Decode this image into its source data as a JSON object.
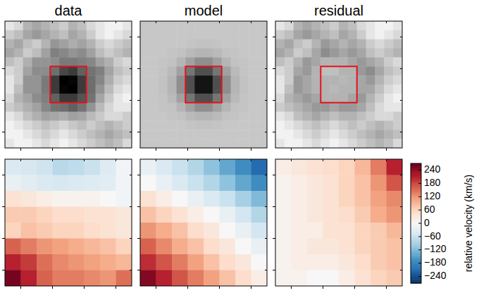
{
  "chart_data": [
    {
      "type": "heatmap",
      "title": "data",
      "color": "gray",
      "color_range": [
        0,
        1
      ],
      "xlim": [
        0,
        14
      ],
      "ylim": [
        0,
        14
      ],
      "xticks": [
        1.75,
        5.25,
        8.75,
        12.25
      ],
      "yticks": [
        1.75,
        5.25,
        8.75,
        12.25
      ],
      "tick_labels": false,
      "box": {
        "x": [
          5,
          9
        ],
        "y": [
          5,
          9
        ],
        "color": "#e8101a"
      },
      "cells": [
        [
          0.1,
          0.15,
          0.3,
          0.35,
          0.3,
          0.25,
          0.2,
          0.3,
          0.25,
          0.15,
          0.1,
          0.05,
          0.05,
          0.1
        ],
        [
          0.2,
          0.25,
          0.35,
          0.4,
          0.35,
          0.3,
          0.25,
          0.35,
          0.3,
          0.2,
          0.1,
          0.05,
          0.1,
          0.15
        ],
        [
          0.3,
          0.35,
          0.25,
          0.2,
          0.3,
          0.41,
          0.37,
          0.32,
          0.36,
          0.3,
          0.2,
          0.15,
          0.2,
          0.25
        ],
        [
          0.35,
          0.3,
          0.2,
          0.26,
          0.37,
          0.5,
          0.47,
          0.42,
          0.45,
          0.37,
          0.26,
          0.2,
          0.25,
          0.3
        ],
        [
          0.25,
          0.2,
          0.31,
          0.42,
          0.42,
          0.45,
          0.52,
          0.52,
          0.5,
          0.47,
          0.37,
          0.31,
          0.2,
          0.15
        ],
        [
          0.15,
          0.2,
          0.36,
          0.45,
          0.45,
          0.57,
          0.72,
          0.77,
          0.62,
          0.55,
          0.5,
          0.36,
          0.25,
          0.2
        ],
        [
          0.1,
          0.2,
          0.42,
          0.42,
          0.52,
          0.77,
          1.0,
          0.98,
          0.77,
          0.57,
          0.47,
          0.32,
          0.2,
          0.15
        ],
        [
          0.1,
          0.25,
          0.42,
          0.42,
          0.52,
          0.77,
          0.98,
          1.0,
          0.77,
          0.57,
          0.42,
          0.27,
          0.15,
          0.1
        ],
        [
          0.15,
          0.3,
          0.36,
          0.45,
          0.5,
          0.62,
          0.77,
          0.77,
          0.67,
          0.55,
          0.35,
          0.21,
          0.1,
          0.05
        ],
        [
          0.2,
          0.25,
          0.31,
          0.37,
          0.47,
          0.55,
          0.57,
          0.62,
          0.55,
          0.42,
          0.27,
          0.16,
          0.1,
          0.1
        ],
        [
          0.1,
          0.15,
          0.25,
          0.31,
          0.37,
          0.35,
          0.32,
          0.37,
          0.35,
          0.27,
          0.21,
          0.15,
          0.15,
          0.2
        ],
        [
          0.05,
          0.1,
          0.15,
          0.2,
          0.25,
          0.21,
          0.17,
          0.22,
          0.26,
          0.2,
          0.25,
          0.3,
          0.25,
          0.2
        ],
        [
          0.05,
          0.05,
          0.1,
          0.15,
          0.2,
          0.15,
          0.1,
          0.15,
          0.2,
          0.25,
          0.3,
          0.35,
          0.3,
          0.25
        ],
        [
          0.1,
          0.05,
          0.05,
          0.1,
          0.15,
          0.1,
          0.05,
          0.1,
          0.15,
          0.2,
          0.25,
          0.3,
          0.25,
          0.15
        ]
      ]
    },
    {
      "type": "heatmap",
      "title": "model",
      "color": "gray",
      "color_range": [
        0,
        1
      ],
      "xlim": [
        0,
        14
      ],
      "ylim": [
        0,
        14
      ],
      "xticks": [
        1.75,
        5.25,
        8.75,
        12.25
      ],
      "yticks": [
        1.75,
        5.25,
        8.75,
        12.25
      ],
      "tick_labels": false,
      "box": {
        "x": [
          5,
          9
        ],
        "y": [
          5,
          9
        ],
        "color": "#e8101a"
      },
      "cells": [
        [
          0.22,
          0.22,
          0.22,
          0.22,
          0.22,
          0.22,
          0.22,
          0.22,
          0.22,
          0.22,
          0.22,
          0.22,
          0.22,
          0.22
        ],
        [
          0.22,
          0.22,
          0.22,
          0.22,
          0.22,
          0.22,
          0.22,
          0.22,
          0.22,
          0.22,
          0.22,
          0.22,
          0.22,
          0.22
        ],
        [
          0.22,
          0.22,
          0.22,
          0.22,
          0.22,
          0.23,
          0.24,
          0.24,
          0.23,
          0.22,
          0.22,
          0.22,
          0.22,
          0.22
        ],
        [
          0.22,
          0.22,
          0.22,
          0.23,
          0.24,
          0.27,
          0.29,
          0.29,
          0.27,
          0.24,
          0.23,
          0.22,
          0.22,
          0.22
        ],
        [
          0.22,
          0.22,
          0.23,
          0.24,
          0.29,
          0.37,
          0.44,
          0.44,
          0.37,
          0.29,
          0.24,
          0.23,
          0.22,
          0.22
        ],
        [
          0.22,
          0.22,
          0.23,
          0.27,
          0.37,
          0.54,
          0.69,
          0.69,
          0.54,
          0.37,
          0.27,
          0.23,
          0.22,
          0.22
        ],
        [
          0.22,
          0.22,
          0.24,
          0.29,
          0.44,
          0.69,
          0.92,
          0.92,
          0.69,
          0.44,
          0.29,
          0.24,
          0.22,
          0.22
        ],
        [
          0.22,
          0.22,
          0.24,
          0.29,
          0.44,
          0.69,
          0.92,
          0.92,
          0.69,
          0.44,
          0.29,
          0.24,
          0.22,
          0.22
        ],
        [
          0.22,
          0.22,
          0.23,
          0.27,
          0.37,
          0.54,
          0.69,
          0.69,
          0.54,
          0.37,
          0.27,
          0.23,
          0.22,
          0.22
        ],
        [
          0.22,
          0.22,
          0.23,
          0.24,
          0.29,
          0.37,
          0.44,
          0.44,
          0.37,
          0.29,
          0.24,
          0.23,
          0.22,
          0.22
        ],
        [
          0.22,
          0.22,
          0.22,
          0.23,
          0.24,
          0.27,
          0.29,
          0.29,
          0.27,
          0.24,
          0.23,
          0.22,
          0.22,
          0.22
        ],
        [
          0.22,
          0.22,
          0.22,
          0.22,
          0.22,
          0.23,
          0.24,
          0.24,
          0.23,
          0.22,
          0.22,
          0.22,
          0.22,
          0.22
        ],
        [
          0.22,
          0.22,
          0.22,
          0.22,
          0.22,
          0.22,
          0.22,
          0.22,
          0.22,
          0.22,
          0.22,
          0.22,
          0.22,
          0.22
        ],
        [
          0.22,
          0.22,
          0.22,
          0.22,
          0.22,
          0.22,
          0.22,
          0.22,
          0.22,
          0.22,
          0.22,
          0.22,
          0.22,
          0.22
        ]
      ]
    },
    {
      "type": "heatmap",
      "title": "residual",
      "color": "gray",
      "color_range": [
        0,
        1
      ],
      "xlim": [
        0,
        14
      ],
      "ylim": [
        0,
        14
      ],
      "xticks": [
        1.75,
        5.25,
        8.75,
        12.25
      ],
      "yticks": [
        1.75,
        5.25,
        8.75,
        12.25
      ],
      "tick_labels": false,
      "box": {
        "x": [
          5,
          9
        ],
        "y": [
          5,
          9
        ],
        "color": "#e8101a"
      },
      "cells": [
        [
          0.1,
          0.15,
          0.3,
          0.35,
          0.3,
          0.25,
          0.2,
          0.3,
          0.25,
          0.15,
          0.1,
          0.05,
          0.05,
          0.1
        ],
        [
          0.2,
          0.25,
          0.35,
          0.4,
          0.35,
          0.3,
          0.25,
          0.35,
          0.3,
          0.2,
          0.1,
          0.05,
          0.1,
          0.15
        ],
        [
          0.3,
          0.35,
          0.25,
          0.2,
          0.3,
          0.4,
          0.35,
          0.3,
          0.35,
          0.3,
          0.2,
          0.15,
          0.2,
          0.25
        ],
        [
          0.35,
          0.3,
          0.2,
          0.25,
          0.35,
          0.45,
          0.4,
          0.35,
          0.4,
          0.35,
          0.25,
          0.2,
          0.25,
          0.3
        ],
        [
          0.25,
          0.2,
          0.3,
          0.4,
          0.35,
          0.3,
          0.3,
          0.3,
          0.35,
          0.4,
          0.35,
          0.3,
          0.2,
          0.15
        ],
        [
          0.15,
          0.2,
          0.35,
          0.4,
          0.3,
          0.25,
          0.25,
          0.3,
          0.3,
          0.4,
          0.45,
          0.35,
          0.25,
          0.2
        ],
        [
          0.1,
          0.2,
          0.4,
          0.35,
          0.3,
          0.3,
          0.3,
          0.28,
          0.3,
          0.35,
          0.4,
          0.3,
          0.2,
          0.15
        ],
        [
          0.1,
          0.25,
          0.4,
          0.35,
          0.3,
          0.3,
          0.28,
          0.3,
          0.3,
          0.35,
          0.35,
          0.25,
          0.15,
          0.1
        ],
        [
          0.15,
          0.3,
          0.35,
          0.4,
          0.35,
          0.3,
          0.3,
          0.3,
          0.35,
          0.4,
          0.3,
          0.2,
          0.1,
          0.05
        ],
        [
          0.2,
          0.25,
          0.3,
          0.35,
          0.4,
          0.4,
          0.35,
          0.4,
          0.4,
          0.35,
          0.25,
          0.15,
          0.1,
          0.1
        ],
        [
          0.1,
          0.15,
          0.25,
          0.3,
          0.35,
          0.3,
          0.25,
          0.3,
          0.3,
          0.25,
          0.2,
          0.15,
          0.15,
          0.2
        ],
        [
          0.05,
          0.1,
          0.15,
          0.2,
          0.25,
          0.2,
          0.15,
          0.2,
          0.25,
          0.2,
          0.25,
          0.3,
          0.25,
          0.2
        ],
        [
          0.05,
          0.05,
          0.1,
          0.15,
          0.2,
          0.15,
          0.1,
          0.15,
          0.2,
          0.25,
          0.3,
          0.35,
          0.3,
          0.25
        ],
        [
          0.1,
          0.05,
          0.05,
          0.1,
          0.15,
          0.1,
          0.05,
          0.1,
          0.15,
          0.2,
          0.25,
          0.3,
          0.25,
          0.15
        ]
      ]
    },
    {
      "type": "heatmap",
      "color": "RdBu",
      "color_range": [
        -270,
        270
      ],
      "xlim": [
        0,
        8
      ],
      "ylim": [
        0,
        8
      ],
      "xticks": [
        1,
        3,
        5,
        7
      ],
      "yticks": [
        1,
        3,
        5,
        7
      ],
      "tick_labels": false,
      "cells": [
        [
          -40,
          -45,
          -55,
          -75,
          -70,
          -60,
          -35,
          -10
        ],
        [
          -20,
          -30,
          -40,
          -45,
          -40,
          -35,
          -30,
          -10
        ],
        [
          40,
          30,
          20,
          10,
          10,
          10,
          0,
          -10
        ],
        [
          70,
          70,
          60,
          50,
          50,
          40,
          40,
          30
        ],
        [
          60,
          80,
          70,
          60,
          60,
          50,
          40,
          30
        ],
        [
          160,
          140,
          120,
          110,
          100,
          90,
          80,
          60
        ],
        [
          210,
          190,
          150,
          130,
          120,
          110,
          100,
          90
        ],
        [
          260,
          210,
          160,
          140,
          140,
          130,
          120,
          150
        ]
      ]
    },
    {
      "type": "heatmap",
      "color": "RdBu",
      "color_range": [
        -270,
        270
      ],
      "xlim": [
        0,
        8
      ],
      "ylim": [
        0,
        8
      ],
      "xticks": [
        1,
        3,
        5,
        7
      ],
      "yticks": [
        1,
        3,
        5,
        7
      ],
      "tick_labels": false,
      "cells": [
        [
          -20,
          -40,
          -60,
          -80,
          -110,
          -140,
          -170,
          -210
        ],
        [
          0,
          -20,
          -40,
          -60,
          -80,
          -110,
          -140,
          -170
        ],
        [
          40,
          20,
          0,
          -20,
          -40,
          -60,
          -90,
          -120
        ],
        [
          80,
          60,
          40,
          20,
          0,
          -20,
          -50,
          -80
        ],
        [
          120,
          100,
          80,
          50,
          30,
          0,
          -20,
          -50
        ],
        [
          160,
          130,
          100,
          80,
          50,
          30,
          0,
          -20
        ],
        [
          200,
          170,
          140,
          110,
          80,
          50,
          30,
          0
        ],
        [
          250,
          210,
          170,
          140,
          110,
          80,
          50,
          20
        ]
      ]
    },
    {
      "type": "heatmap",
      "color": "RdBu",
      "color_range": [
        -270,
        270
      ],
      "xlim": [
        0,
        8
      ],
      "ylim": [
        0,
        8
      ],
      "xticks": [
        1,
        3,
        5,
        7
      ],
      "yticks": [
        1,
        3,
        5,
        7
      ],
      "tick_labels": false,
      "cells": [
        [
          20,
          30,
          40,
          50,
          60,
          90,
          140,
          210
        ],
        [
          10,
          20,
          30,
          40,
          60,
          80,
          120,
          170
        ],
        [
          10,
          20,
          30,
          40,
          60,
          80,
          110,
          130
        ],
        [
          10,
          20,
          30,
          40,
          50,
          70,
          100,
          120
        ],
        [
          10,
          20,
          20,
          40,
          40,
          60,
          70,
          90
        ],
        [
          10,
          20,
          30,
          30,
          40,
          60,
          70,
          80
        ],
        [
          10,
          20,
          20,
          20,
          30,
          50,
          70,
          80
        ],
        [
          10,
          10,
          0,
          0,
          20,
          40,
          60,
          70
        ]
      ],
      "colorbar": {
        "label": "relative velocity (km/s)",
        "range": [
          -270,
          270
        ],
        "ticks": [
          {
            "value": -240,
            "label": "−240"
          },
          {
            "value": -180,
            "label": "−180"
          },
          {
            "value": -120,
            "label": "−120"
          },
          {
            "value": -60,
            "label": "−60"
          },
          0,
          60,
          120,
          180,
          240
        ]
      }
    }
  ]
}
